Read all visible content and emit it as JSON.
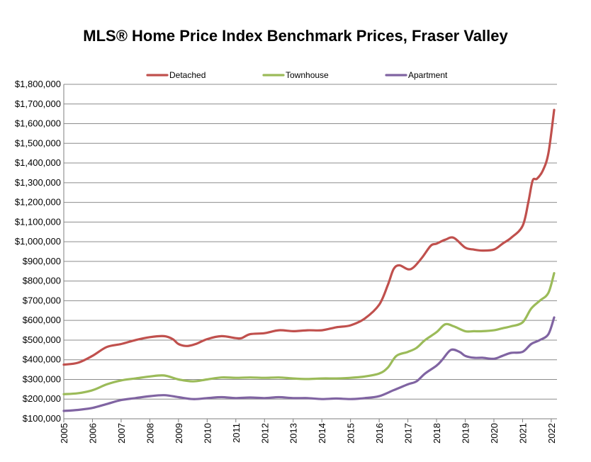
{
  "chart_data": {
    "type": "line",
    "title": "MLS® Home Price Index Benchmark Prices, Fraser Valley",
    "xlabel": "",
    "ylabel": "",
    "xlim": [
      2005,
      2022.2
    ],
    "ylim": [
      100000,
      1800000
    ],
    "y_ticks": [
      100000,
      200000,
      300000,
      400000,
      500000,
      600000,
      700000,
      800000,
      900000,
      1000000,
      1100000,
      1200000,
      1300000,
      1400000,
      1500000,
      1600000,
      1700000,
      1800000
    ],
    "y_tick_labels": [
      "$100,000",
      "$200,000",
      "$300,000",
      "$400,000",
      "$500,000",
      "$600,000",
      "$700,000",
      "$800,000",
      "$900,000",
      "$1,000,000",
      "$1,100,000",
      "$1,200,000",
      "$1,300,000",
      "$1,400,000",
      "$1,500,000",
      "$1,600,000",
      "$1,700,000",
      "$1,800,000"
    ],
    "x_ticks": [
      2005,
      2006,
      2007,
      2008,
      2009,
      2010,
      2011,
      2012,
      2013,
      2014,
      2015,
      2016,
      2017,
      2018,
      2019,
      2020,
      2021,
      2022
    ],
    "x_tick_labels": [
      "2005",
      "2006",
      "2007",
      "2008",
      "2009",
      "2010",
      "2011",
      "2012",
      "2013",
      "2014",
      "2015",
      "2016",
      "2017",
      "2018",
      "2019",
      "2020",
      "2021",
      "2022"
    ],
    "grid": "horizontal",
    "legend_position": "top",
    "series": [
      {
        "name": "Detached",
        "color": "#c0504d",
        "x": [
          2005,
          2005.5,
          2006,
          2006.5,
          2007,
          2007.5,
          2008,
          2008.5,
          2008.8,
          2009,
          2009.3,
          2009.6,
          2010,
          2010.5,
          2011,
          2011.2,
          2011.5,
          2012,
          2012.5,
          2013,
          2013.5,
          2014,
          2014.5,
          2015,
          2015.5,
          2016,
          2016.3,
          2016.5,
          2016.7,
          2017,
          2017.2,
          2017.5,
          2017.8,
          2018,
          2018.3,
          2018.6,
          2019,
          2019.3,
          2019.6,
          2020,
          2020.3,
          2020.6,
          2021,
          2021.2,
          2021.35,
          2021.5,
          2021.7,
          2021.9,
          2022.1
        ],
        "y": [
          375000,
          385000,
          420000,
          465000,
          480000,
          500000,
          515000,
          520000,
          505000,
          480000,
          470000,
          480000,
          505000,
          520000,
          510000,
          510000,
          530000,
          535000,
          550000,
          545000,
          550000,
          550000,
          565000,
          575000,
          610000,
          680000,
          780000,
          860000,
          880000,
          860000,
          870000,
          920000,
          980000,
          990000,
          1010000,
          1020000,
          970000,
          960000,
          955000,
          960000,
          990000,
          1020000,
          1080000,
          1200000,
          1310000,
          1320000,
          1360000,
          1450000,
          1670000
        ]
      },
      {
        "name": "Townhouse",
        "color": "#9bbb59",
        "x": [
          2005,
          2005.5,
          2006,
          2006.5,
          2007,
          2007.5,
          2008,
          2008.5,
          2009,
          2009.5,
          2010,
          2010.5,
          2011,
          2011.5,
          2012,
          2012.5,
          2013,
          2013.5,
          2014,
          2014.5,
          2015,
          2015.5,
          2016,
          2016.3,
          2016.6,
          2017,
          2017.3,
          2017.6,
          2018,
          2018.3,
          2018.6,
          2019,
          2019.3,
          2019.6,
          2020,
          2020.3,
          2020.6,
          2021,
          2021.3,
          2021.6,
          2021.9,
          2022.1
        ],
        "y": [
          225000,
          230000,
          245000,
          275000,
          295000,
          305000,
          315000,
          320000,
          300000,
          290000,
          300000,
          310000,
          308000,
          310000,
          308000,
          310000,
          305000,
          302000,
          305000,
          305000,
          308000,
          315000,
          330000,
          360000,
          420000,
          440000,
          460000,
          500000,
          540000,
          580000,
          570000,
          545000,
          545000,
          545000,
          550000,
          560000,
          570000,
          590000,
          660000,
          700000,
          740000,
          840000
        ]
      },
      {
        "name": "Apartment",
        "color": "#8064a2",
        "x": [
          2005,
          2005.5,
          2006,
          2006.5,
          2007,
          2007.5,
          2008,
          2008.5,
          2009,
          2009.5,
          2010,
          2010.5,
          2011,
          2011.5,
          2012,
          2012.5,
          2013,
          2013.5,
          2014,
          2014.5,
          2015,
          2015.5,
          2016,
          2016.5,
          2017,
          2017.3,
          2017.6,
          2018,
          2018.2,
          2018.5,
          2018.8,
          2019,
          2019.3,
          2019.6,
          2020,
          2020.3,
          2020.6,
          2021,
          2021.3,
          2021.6,
          2021.9,
          2022.1
        ],
        "y": [
          140000,
          145000,
          155000,
          175000,
          195000,
          205000,
          215000,
          220000,
          210000,
          200000,
          205000,
          210000,
          205000,
          208000,
          205000,
          210000,
          205000,
          205000,
          200000,
          203000,
          200000,
          205000,
          215000,
          245000,
          275000,
          290000,
          330000,
          370000,
          400000,
          450000,
          440000,
          420000,
          410000,
          410000,
          405000,
          420000,
          435000,
          440000,
          480000,
          500000,
          530000,
          615000
        ]
      }
    ]
  }
}
